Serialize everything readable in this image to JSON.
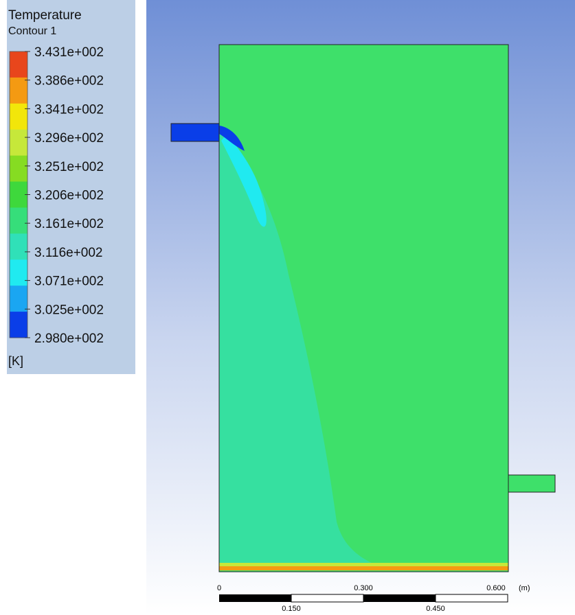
{
  "legend": {
    "title": "Temperature",
    "subtitle": "Contour 1",
    "labels": [
      "3.431e+002",
      "3.386e+002",
      "3.341e+002",
      "3.296e+002",
      "3.251e+002",
      "3.206e+002",
      "3.161e+002",
      "3.116e+002",
      "3.071e+002",
      "3.025e+002",
      "2.980e+002"
    ],
    "colors": [
      "#e8461c",
      "#f49a12",
      "#f2e60a",
      "#c6e83a",
      "#86dc22",
      "#3ed83c",
      "#36de7a",
      "#30e0b8",
      "#20eaf0",
      "#1aa6f2",
      "#0a3ee8"
    ],
    "unit": "[K]"
  },
  "scale": {
    "top_labels": [
      "0",
      "0.300",
      "0.600"
    ],
    "unit": "(m)",
    "bottom_labels": [
      "0.150",
      "0.450"
    ]
  }
}
